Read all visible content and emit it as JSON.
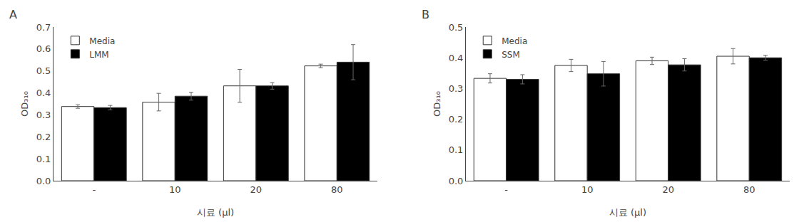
{
  "chart_data": [
    {
      "type": "bar",
      "categories": [
        "-",
        "10",
        "20",
        "80"
      ],
      "xlabel": "시료 (μl)",
      "ylabel": "OD₃₁₀",
      "annotations": [
        "A"
      ],
      "series": [
        {
          "name": "Media",
          "color": "#ffffff",
          "values": [
            0.338,
            0.358,
            0.432,
            0.523
          ],
          "errors": [
            0.008,
            0.04,
            0.075,
            0.008
          ]
        },
        {
          "name": "LMM",
          "color": "#000000",
          "values": [
            0.333,
            0.385,
            0.432,
            0.54
          ],
          "errors": [
            0.01,
            0.018,
            0.015,
            0.08
          ]
        }
      ],
      "ylim": [
        0,
        0.7
      ],
      "yticks": [
        {
          "value": 0,
          "label": "0.0"
        },
        0.1,
        0.2,
        0.3,
        0.4,
        0.5,
        0.6,
        0.7
      ],
      "grid": false,
      "legend": "upper left"
    },
    {
      "type": "bar",
      "categories": [
        "-",
        "10",
        "20",
        "80"
      ],
      "xlabel": "시료 (μl)",
      "ylabel": "OD₃₁₀",
      "annotations": [
        "B"
      ],
      "series": [
        {
          "name": "Media",
          "color": "#ffffff",
          "values": [
            0.333,
            0.375,
            0.39,
            0.405
          ],
          "errors": [
            0.015,
            0.02,
            0.012,
            0.025
          ]
        },
        {
          "name": "SSM",
          "color": "#000000",
          "values": [
            0.33,
            0.348,
            0.377,
            0.4
          ],
          "errors": [
            0.015,
            0.04,
            0.02,
            0.008
          ]
        }
      ],
      "ylim": [
        0,
        0.5
      ],
      "yticks": [
        {
          "value": 0,
          "label": "0.0"
        },
        0.1,
        0.2,
        0.3,
        0.4,
        0.5
      ],
      "grid": false,
      "legend": "upper left"
    }
  ]
}
